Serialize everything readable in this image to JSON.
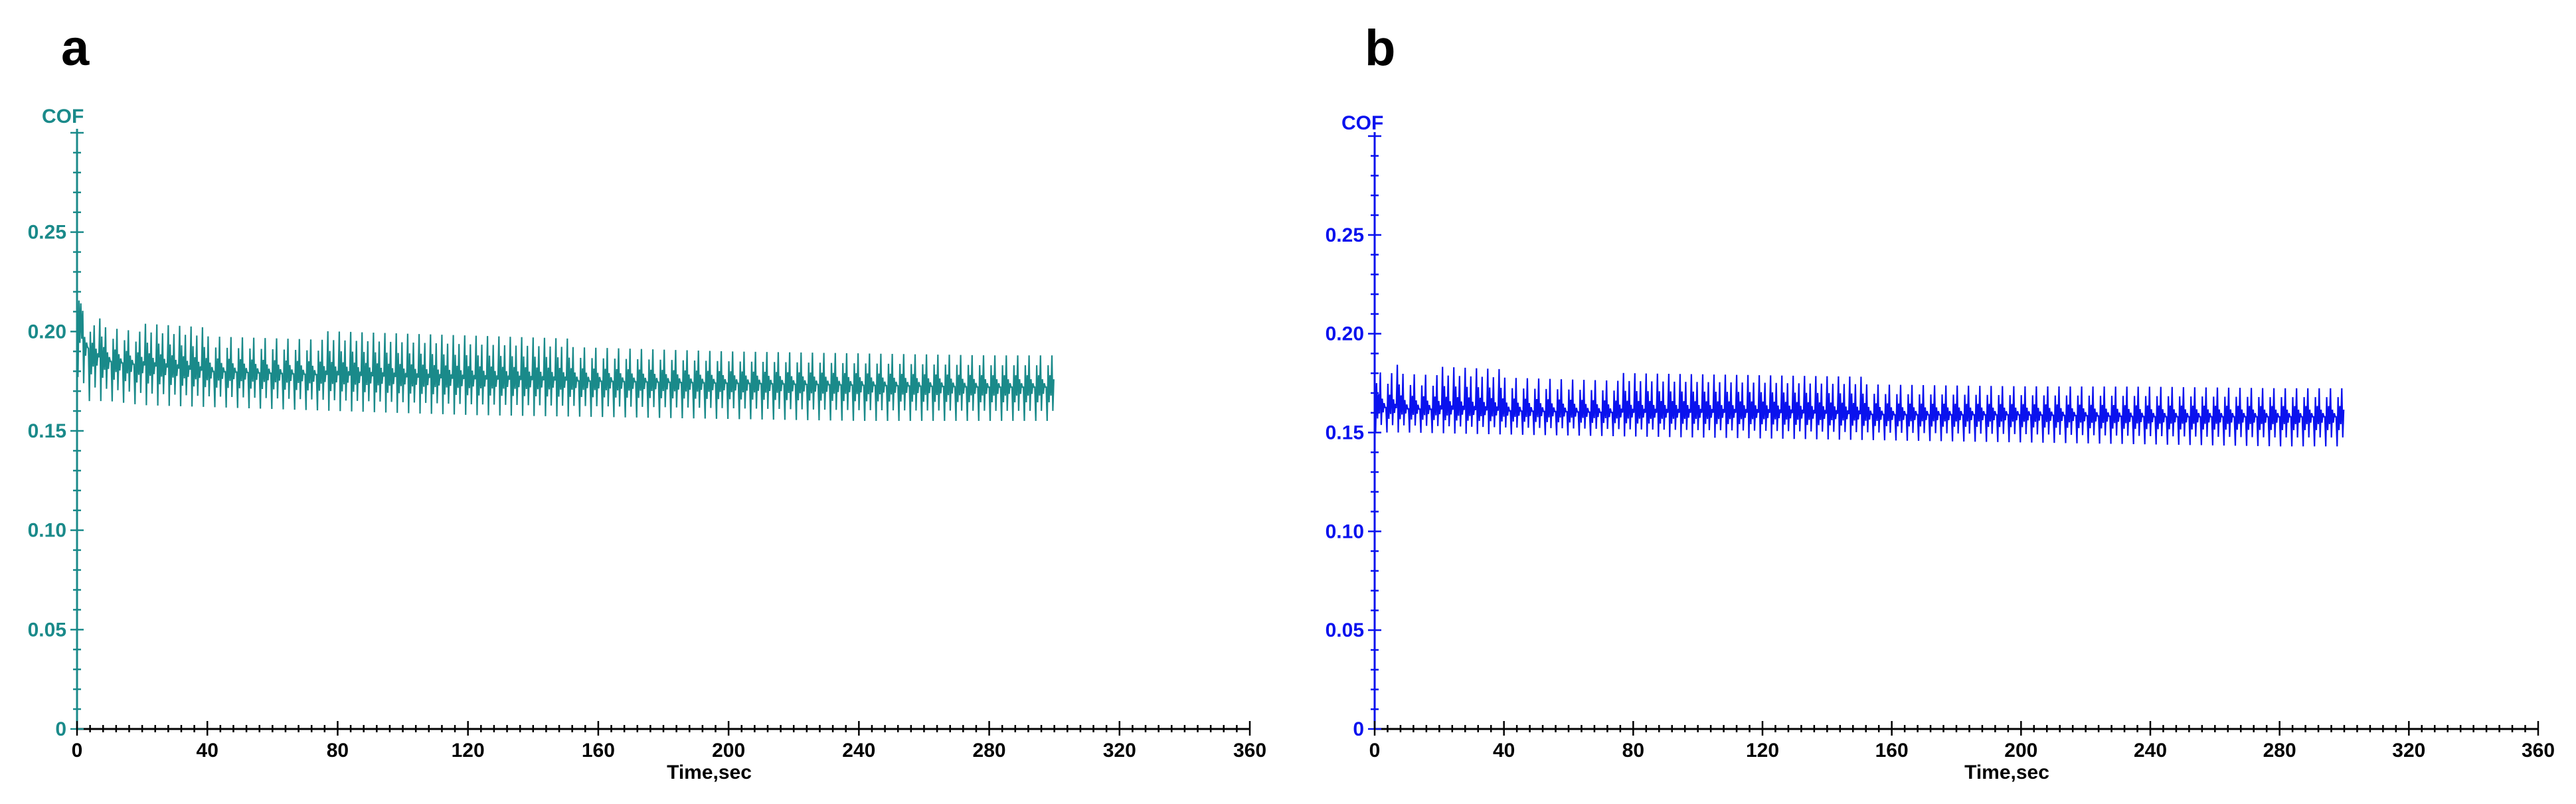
{
  "figure": {
    "panels": [
      {
        "label": "a",
        "color": "#1a8a8a",
        "ylabel": "COF",
        "xlabel": "Time,sec"
      },
      {
        "label": "b",
        "color": "#0a12ee",
        "ylabel": "COF",
        "xlabel": "Time,sec"
      }
    ]
  },
  "chart_data": [
    {
      "type": "line",
      "title": "a",
      "xlabel": "Time,sec",
      "ylabel": "COF",
      "xlim": [
        0,
        360
      ],
      "ylim": [
        0,
        0.3
      ],
      "xticks": [
        0,
        40,
        80,
        120,
        160,
        200,
        240,
        280,
        320,
        360
      ],
      "xtick_labels": [
        "0",
        "40",
        "80",
        "120",
        "160",
        "200",
        "240",
        "280",
        "320",
        "360"
      ],
      "yticks": [
        0,
        0.05,
        0.1,
        0.15,
        0.2,
        0.25
      ],
      "ytick_labels": [
        "0",
        "0.05",
        "0.10",
        "0.15",
        "0.20",
        "0.25"
      ],
      "grid": false,
      "color": "#1a8a8a",
      "series": [
        {
          "period_sec": 3.5,
          "x": [
            0,
            1,
            2,
            5,
            10,
            20,
            40,
            80,
            120,
            160,
            200,
            240,
            280,
            300
          ],
          "mean": [
            0.2,
            0.215,
            0.195,
            0.188,
            0.185,
            0.183,
            0.18,
            0.178,
            0.176,
            0.175,
            0.174,
            0.173,
            0.172,
            0.172
          ],
          "min": [
            0.18,
            0.17,
            0.165,
            0.165,
            0.165,
            0.163,
            0.162,
            0.16,
            0.158,
            0.157,
            0.156,
            0.155,
            0.155,
            0.155
          ],
          "max": [
            0.22,
            0.222,
            0.21,
            0.207,
            0.206,
            0.204,
            0.202,
            0.2,
            0.198,
            0.196,
            0.194,
            0.193,
            0.192,
            0.192
          ]
        }
      ]
    },
    {
      "type": "line",
      "title": "b",
      "xlabel": "Time,sec",
      "ylabel": "COF",
      "xlim": [
        0,
        360
      ],
      "ylim": [
        0,
        0.3
      ],
      "xticks": [
        0,
        40,
        80,
        120,
        160,
        200,
        240,
        280,
        320,
        360
      ],
      "xtick_labels": [
        "0",
        "40",
        "80",
        "120",
        "160",
        "200",
        "240",
        "280",
        "320",
        "360"
      ],
      "yticks": [
        0,
        0.05,
        0.1,
        0.15,
        0.2,
        0.25
      ],
      "ytick_labels": [
        "0",
        "0.05",
        "0.10",
        "0.15",
        "0.20",
        "0.25"
      ],
      "grid": false,
      "color": "#0a12ee",
      "series": [
        {
          "period_sec": 3.5,
          "x": [
            0,
            10,
            40,
            80,
            120,
            160,
            200,
            240,
            280,
            300
          ],
          "mean": [
            0.163,
            0.162,
            0.161,
            0.16,
            0.16,
            0.159,
            0.159,
            0.158,
            0.158,
            0.158
          ],
          "min": [
            0.15,
            0.15,
            0.149,
            0.148,
            0.147,
            0.146,
            0.145,
            0.144,
            0.143,
            0.143
          ],
          "max": [
            0.185,
            0.184,
            0.182,
            0.18,
            0.179,
            0.178,
            0.177,
            0.177,
            0.176,
            0.176
          ]
        }
      ]
    }
  ]
}
